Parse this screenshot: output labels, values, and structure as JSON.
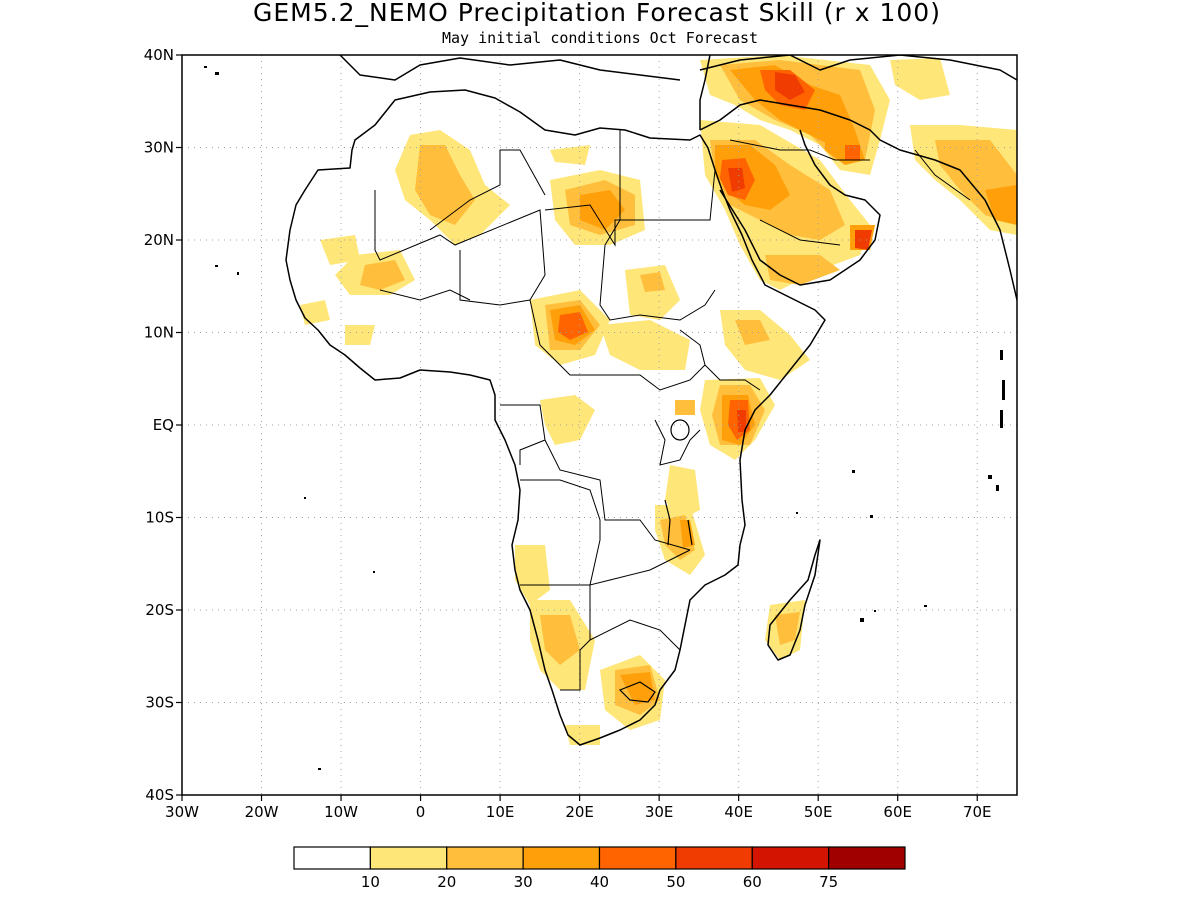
{
  "title": "GEM5.2_NEMO Precipitation Forecast Skill (r x 100)",
  "subtitle": "May initial conditions  Oct Forecast",
  "map": {
    "lon_range": [
      -30,
      75
    ],
    "lat_range": [
      -40,
      40
    ],
    "grid": true,
    "lat_ticks": [
      {
        "value": 40,
        "label": "40N"
      },
      {
        "value": 30,
        "label": "30N"
      },
      {
        "value": 20,
        "label": "20N"
      },
      {
        "value": 10,
        "label": "10N"
      },
      {
        "value": 0,
        "label": "EQ"
      },
      {
        "value": -10,
        "label": "10S"
      },
      {
        "value": -20,
        "label": "20S"
      },
      {
        "value": -30,
        "label": "30S"
      },
      {
        "value": -40,
        "label": "40S"
      }
    ],
    "lon_ticks": [
      {
        "value": -30,
        "label": "30W"
      },
      {
        "value": -20,
        "label": "20W"
      },
      {
        "value": -10,
        "label": "10W"
      },
      {
        "value": 0,
        "label": "0"
      },
      {
        "value": 10,
        "label": "10E"
      },
      {
        "value": 20,
        "label": "20E"
      },
      {
        "value": 30,
        "label": "30E"
      },
      {
        "value": 40,
        "label": "40E"
      },
      {
        "value": 50,
        "label": "50E"
      },
      {
        "value": 60,
        "label": "60E"
      },
      {
        "value": 70,
        "label": "70E"
      }
    ]
  },
  "colorbar": {
    "colors": [
      "#ffffff",
      "#ffe678",
      "#ffbe3c",
      "#ffa00a",
      "#ff6400",
      "#f03c00",
      "#d21400",
      "#a00000"
    ],
    "labels": [
      "10",
      "20",
      "30",
      "40",
      "50",
      "60",
      "75"
    ]
  },
  "colors": {
    "coast": "#000000",
    "grid": "#a0a0a0"
  }
}
